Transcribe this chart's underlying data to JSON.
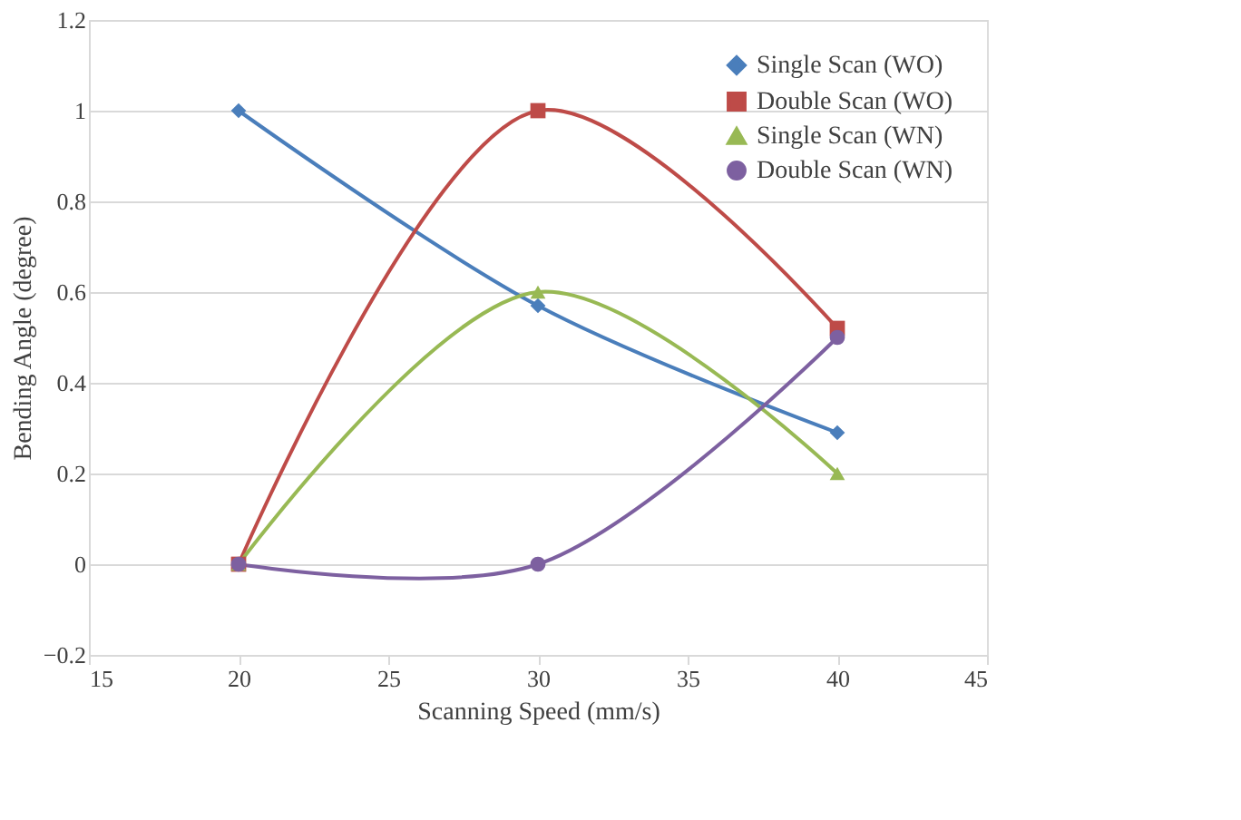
{
  "chart_data": {
    "type": "line",
    "xlabel": "Scanning Speed  (mm/s)",
    "ylabel": "Bending Angle (degree)",
    "x": [
      20,
      30,
      40
    ],
    "series": [
      {
        "name": "Single Scan (WO)",
        "color": "#4a7ebb",
        "marker": "diamond",
        "values": [
          1,
          0.57,
          0.29
        ]
      },
      {
        "name": "Double Scan (WO)",
        "color": "#be4b48",
        "marker": "square",
        "values": [
          0,
          1,
          0.52
        ]
      },
      {
        "name": "Single Scan (WN)",
        "color": "#98b954",
        "marker": "triangle",
        "values": [
          0,
          0.6,
          0.2
        ]
      },
      {
        "name": "Double Scan (WN)",
        "color": "#7d60a0",
        "marker": "circle",
        "values": [
          0,
          0,
          0.5
        ]
      }
    ],
    "xlim": [
      15,
      45
    ],
    "xticks": [
      15,
      20,
      25,
      30,
      35,
      40,
      45
    ],
    "ylim": [
      -0.2,
      1.2
    ],
    "yticks": [
      -0.2,
      0,
      0.2,
      0.4,
      0.6,
      0.8,
      1,
      1.2
    ],
    "grid": "y",
    "legend": "top right",
    "line_style": "solid"
  }
}
